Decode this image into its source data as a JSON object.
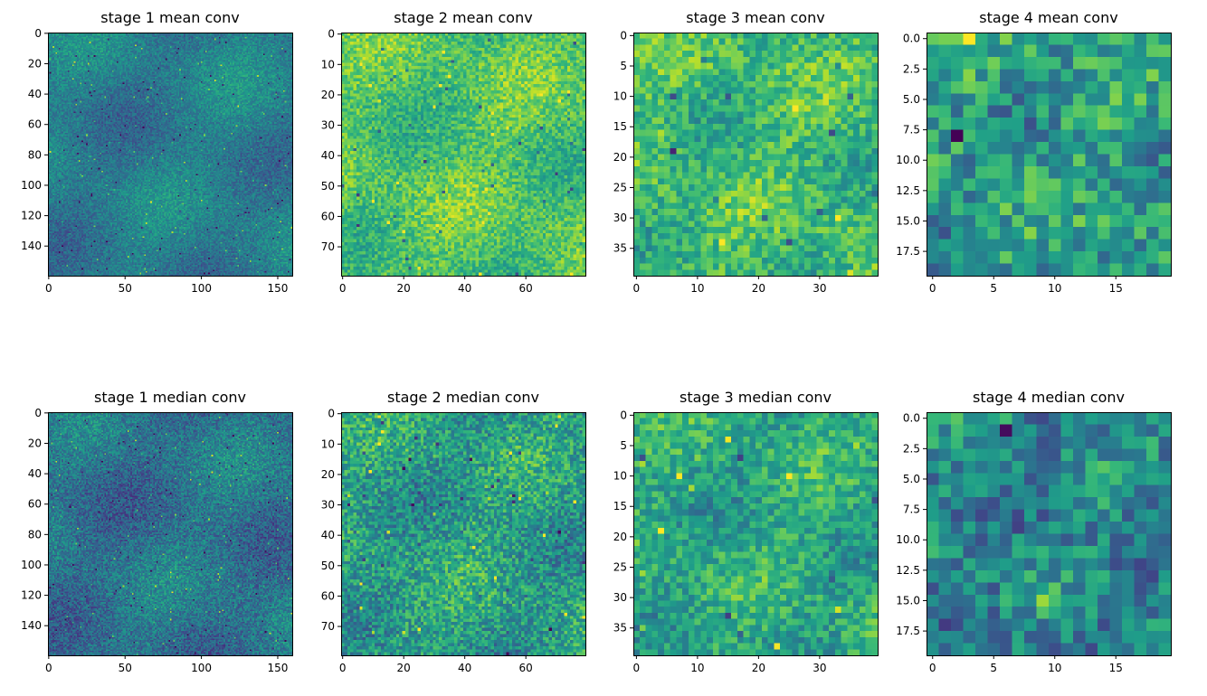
{
  "chart_data": [
    {
      "type": "heatmap",
      "title": "stage 1 mean conv",
      "colormap": "viridis",
      "shape": [
        160,
        160
      ],
      "xlim": [
        -0.5,
        159.5
      ],
      "ylim": [
        159.5,
        -0.5
      ],
      "xticks": [
        "0",
        "50",
        "100",
        "150"
      ],
      "yticks": [
        "0",
        "20",
        "40",
        "60",
        "80",
        "100",
        "120",
        "140"
      ],
      "xtick_values": [
        0,
        50,
        100,
        150
      ],
      "ytick_values": [
        0,
        20,
        40,
        60,
        80,
        100,
        120,
        140
      ]
    },
    {
      "type": "heatmap",
      "title": "stage 2 mean conv",
      "colormap": "viridis",
      "shape": [
        80,
        80
      ],
      "xlim": [
        -0.5,
        79.5
      ],
      "ylim": [
        79.5,
        -0.5
      ],
      "xticks": [
        "0",
        "20",
        "40",
        "60"
      ],
      "yticks": [
        "0",
        "10",
        "20",
        "30",
        "40",
        "50",
        "60",
        "70"
      ],
      "xtick_values": [
        0,
        20,
        40,
        60
      ],
      "ytick_values": [
        0,
        10,
        20,
        30,
        40,
        50,
        60,
        70
      ]
    },
    {
      "type": "heatmap",
      "title": "stage 3 mean conv",
      "colormap": "viridis",
      "shape": [
        40,
        40
      ],
      "xlim": [
        -0.5,
        39.5
      ],
      "ylim": [
        39.5,
        -0.5
      ],
      "xticks": [
        "0",
        "10",
        "20",
        "30"
      ],
      "yticks": [
        "0",
        "5",
        "10",
        "15",
        "20",
        "25",
        "30",
        "35"
      ],
      "xtick_values": [
        0,
        10,
        20,
        30
      ],
      "ytick_values": [
        0,
        5,
        10,
        15,
        20,
        25,
        30,
        35
      ]
    },
    {
      "type": "heatmap",
      "title": "stage 4 mean conv",
      "colormap": "viridis",
      "shape": [
        20,
        20
      ],
      "xlim": [
        -0.5,
        19.5
      ],
      "ylim": [
        19.5,
        -0.5
      ],
      "xticks": [
        "0",
        "5",
        "10",
        "15"
      ],
      "yticks": [
        "0.0",
        "2.5",
        "5.0",
        "7.5",
        "10.0",
        "12.5",
        "15.0",
        "17.5"
      ],
      "xtick_values": [
        0,
        5,
        10,
        15
      ],
      "ytick_values": [
        0,
        2.5,
        5,
        7.5,
        10,
        12.5,
        15,
        17.5
      ]
    },
    {
      "type": "heatmap",
      "title": "stage 1 median conv",
      "colormap": "viridis",
      "shape": [
        160,
        160
      ],
      "xlim": [
        -0.5,
        159.5
      ],
      "ylim": [
        159.5,
        -0.5
      ],
      "xticks": [
        "0",
        "50",
        "100",
        "150"
      ],
      "yticks": [
        "0",
        "20",
        "40",
        "60",
        "80",
        "100",
        "120",
        "140"
      ],
      "xtick_values": [
        0,
        50,
        100,
        150
      ],
      "ytick_values": [
        0,
        20,
        40,
        60,
        80,
        100,
        120,
        140
      ]
    },
    {
      "type": "heatmap",
      "title": "stage 2 median conv",
      "colormap": "viridis",
      "shape": [
        80,
        80
      ],
      "xlim": [
        -0.5,
        79.5
      ],
      "ylim": [
        79.5,
        -0.5
      ],
      "xticks": [
        "0",
        "20",
        "40",
        "60"
      ],
      "yticks": [
        "0",
        "10",
        "20",
        "30",
        "40",
        "50",
        "60",
        "70"
      ],
      "xtick_values": [
        0,
        20,
        40,
        60
      ],
      "ytick_values": [
        0,
        10,
        20,
        30,
        40,
        50,
        60,
        70
      ]
    },
    {
      "type": "heatmap",
      "title": "stage 3 median conv",
      "colormap": "viridis",
      "shape": [
        40,
        40
      ],
      "xlim": [
        -0.5,
        39.5
      ],
      "ylim": [
        39.5,
        -0.5
      ],
      "xticks": [
        "0",
        "10",
        "20",
        "30"
      ],
      "yticks": [
        "0",
        "5",
        "10",
        "15",
        "20",
        "25",
        "30",
        "35"
      ],
      "xtick_values": [
        0,
        10,
        20,
        30
      ],
      "ytick_values": [
        0,
        5,
        10,
        15,
        20,
        25,
        30,
        35
      ]
    },
    {
      "type": "heatmap",
      "title": "stage 4 median conv",
      "colormap": "viridis",
      "shape": [
        20,
        20
      ],
      "xlim": [
        -0.5,
        19.5
      ],
      "ylim": [
        19.5,
        -0.5
      ],
      "xticks": [
        "0",
        "5",
        "10",
        "15"
      ],
      "yticks": [
        "0.0",
        "2.5",
        "5.0",
        "7.5",
        "10.0",
        "12.5",
        "15.0",
        "17.5"
      ],
      "xtick_values": [
        0,
        5,
        10,
        15
      ],
      "ytick_values": [
        0,
        2.5,
        5,
        7.5,
        10,
        12.5,
        15,
        17.5
      ]
    }
  ]
}
